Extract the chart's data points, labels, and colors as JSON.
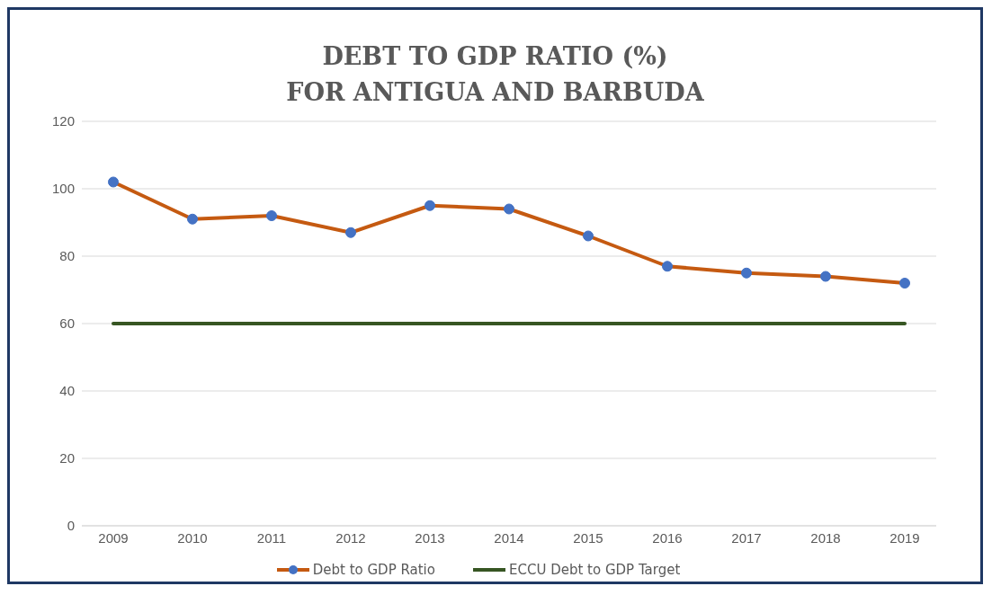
{
  "chart_data": {
    "type": "line",
    "title": "DEBT TO GDP RATIO (%)\nFOR ANTIGUA AND BARBUDA",
    "categories": [
      "2009",
      "2010",
      "2011",
      "2012",
      "2013",
      "2014",
      "2015",
      "2016",
      "2017",
      "2018",
      "2019"
    ],
    "series": [
      {
        "name": "Debt to GDP Ratio",
        "color": "#c55a11",
        "values": [
          102,
          91,
          92,
          87,
          95,
          94,
          86,
          77,
          75,
          74,
          72
        ],
        "marker": "circle"
      },
      {
        "name": "ECCU Debt to GDP Target",
        "color": "#375623",
        "values": [
          60,
          60,
          60,
          60,
          60,
          60,
          60,
          60,
          60,
          60,
          60
        ],
        "marker": "none"
      }
    ],
    "ylim": [
      0,
      120
    ],
    "yticks": [
      0,
      20,
      40,
      60,
      80,
      100,
      120
    ],
    "grid": "y",
    "legend": "bottom",
    "line_style": "solid"
  }
}
